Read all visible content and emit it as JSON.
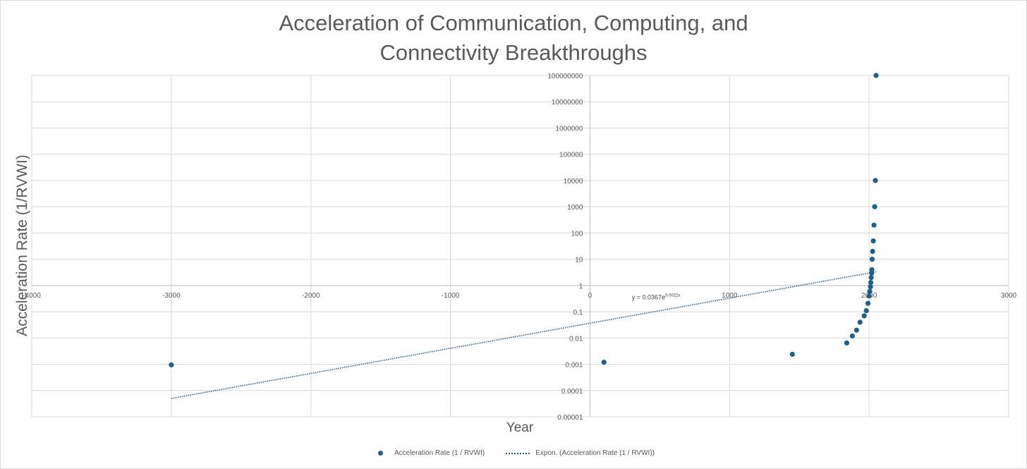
{
  "chart_data": {
    "type": "scatter",
    "title_lines": [
      "Acceleration of Communication, Computing, and",
      "Connectivity Breakthroughs"
    ],
    "xlabel": "Year",
    "ylabel": "Acceleration Rate (1/RVWI)",
    "xlim": [
      -4000,
      3000
    ],
    "x_ticks": [
      "-4000",
      "-3000",
      "-2000",
      "-1000",
      "0",
      "1000",
      "2000",
      "3000"
    ],
    "x_tick_values": [
      -4000,
      -3000,
      -2000,
      -1000,
      0,
      1000,
      2000,
      3000
    ],
    "y_scale": "log",
    "ylim": [
      1e-05,
      100000000
    ],
    "y_ticks": [
      "0.00001",
      "0.0001",
      "0.001",
      "0.01",
      "0.1",
      "1",
      "10",
      "100",
      "1000",
      "10000",
      "100000",
      "1000000",
      "10000000",
      "100000000"
    ],
    "y_tick_values": [
      1e-05,
      0.0001,
      0.001,
      0.01,
      0.1,
      1,
      10,
      100,
      1000,
      10000,
      100000,
      1000000,
      10000000,
      100000000
    ],
    "series": [
      {
        "name": "Acceleration Rate (1 / RVWI)",
        "color": "#1f5f8b",
        "points": [
          {
            "x": -3000,
            "y": 0.00095
          },
          {
            "x": 100,
            "y": 0.0012
          },
          {
            "x": 1450,
            "y": 0.0024
          },
          {
            "x": 1840,
            "y": 0.0065
          },
          {
            "x": 1880,
            "y": 0.012
          },
          {
            "x": 1910,
            "y": 0.02
          },
          {
            "x": 1935,
            "y": 0.04
          },
          {
            "x": 1965,
            "y": 0.07
          },
          {
            "x": 1980,
            "y": 0.11
          },
          {
            "x": 1992,
            "y": 0.21
          },
          {
            "x": 2000,
            "y": 0.4
          },
          {
            "x": 2005,
            "y": 0.6
          },
          {
            "x": 2010,
            "y": 0.9
          },
          {
            "x": 2012,
            "y": 1.3
          },
          {
            "x": 2015,
            "y": 2
          },
          {
            "x": 2018,
            "y": 3
          },
          {
            "x": 2020,
            "y": 4
          },
          {
            "x": 2022,
            "y": 10
          },
          {
            "x": 2025,
            "y": 20
          },
          {
            "x": 2030,
            "y": 50
          },
          {
            "x": 2035,
            "y": 200
          },
          {
            "x": 2040,
            "y": 1000
          },
          {
            "x": 2045,
            "y": 10000
          },
          {
            "x": 2050,
            "y": 100000000
          }
        ]
      }
    ],
    "trendline": {
      "name": "Expon. (Acceleration Rate (1 / RVWI))",
      "type": "exponential",
      "a": 0.0367,
      "b": 0.0022,
      "x_range": [
        -3000,
        2050
      ],
      "equation_label": "y = 0.0367e",
      "equation_exponent": "0.0022x",
      "color": "#1f5f8b"
    }
  }
}
